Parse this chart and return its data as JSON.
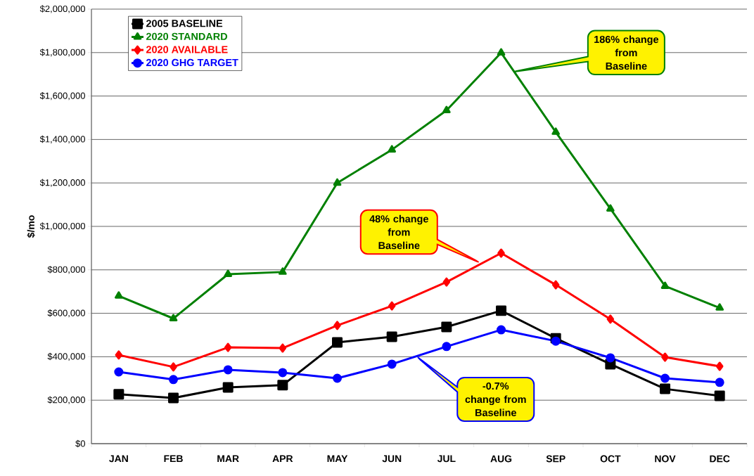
{
  "chart_data": {
    "type": "line",
    "ylabel": "$/mo",
    "categories": [
      "JAN",
      "FEB",
      "MAR",
      "APR",
      "MAY",
      "JUN",
      "JUL",
      "AUG",
      "SEP",
      "OCT",
      "NOV",
      "DEC"
    ],
    "series": [
      {
        "name": "2005 BASELINE",
        "color": "#000000",
        "marker": "square",
        "values": [
          227000,
          210000,
          259000,
          269000,
          466000,
          492000,
          537000,
          612000,
          485000,
          366000,
          252000,
          220000
        ]
      },
      {
        "name": "2020 STANDARD",
        "color": "#008000",
        "marker": "triangle",
        "values": [
          680000,
          576000,
          780000,
          790000,
          1200000,
          1353000,
          1534000,
          1799000,
          1434000,
          1081000,
          725000,
          625000
        ]
      },
      {
        "name": "2020 AVAILABLE",
        "color": "#ff0000",
        "marker": "diamond",
        "values": [
          408000,
          353000,
          443000,
          440000,
          544000,
          634000,
          744000,
          877000,
          731000,
          573000,
          398000,
          356000
        ]
      },
      {
        "name": "2020 GHG TARGET",
        "color": "#0000ff",
        "marker": "circle",
        "values": [
          330000,
          295000,
          340000,
          327000,
          301000,
          366000,
          447000,
          524000,
          472000,
          395000,
          301000,
          282000
        ]
      }
    ],
    "ylim": [
      0,
      2000000
    ],
    "yticks": [
      {
        "value": 0,
        "label": "$0"
      },
      {
        "value": 200000,
        "label": "$200,000"
      },
      {
        "value": 400000,
        "label": "$400,000"
      },
      {
        "value": 600000,
        "label": "$600,000"
      },
      {
        "value": 800000,
        "label": "$800,000"
      },
      {
        "value": 1000000,
        "label": "$1,000,000"
      },
      {
        "value": 1200000,
        "label": "$1,200,000"
      },
      {
        "value": 1400000,
        "label": "$1,400,000"
      },
      {
        "value": 1600000,
        "label": "$1,600,000"
      },
      {
        "value": 1800000,
        "label": "$1,800,000"
      },
      {
        "value": 2000000,
        "label": "$2,000,000"
      }
    ],
    "grid": "y",
    "legend": "top left",
    "line_style": "solid",
    "annotations": [
      "186% change from Baseline",
      "48% change from Baseline",
      "-0.7% change from Baseline"
    ]
  }
}
